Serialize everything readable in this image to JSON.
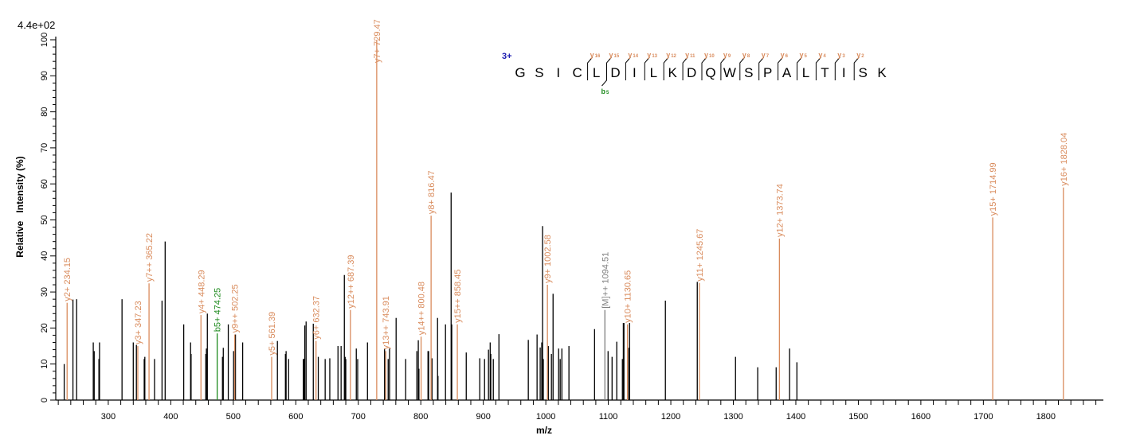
{
  "chart_data": {
    "type": "bar",
    "subtype": "mass-spectrum",
    "scale_label": "4.4e+02",
    "xlabel": "m/z",
    "ylabel": "Relative   Intensity (%)",
    "xlim": [
      216,
      1892
    ],
    "ylim": [
      0,
      100
    ],
    "x_ticks": [
      300,
      400,
      500,
      600,
      700,
      800,
      900,
      1000,
      1100,
      1200,
      1300,
      1400,
      1500,
      1600,
      1700,
      1800
    ],
    "y_ticks": [
      0,
      10,
      20,
      30,
      40,
      50,
      60,
      70,
      80,
      90,
      100
    ],
    "grid": false,
    "colors": {
      "y_ion": "#D98B5C",
      "b_ion": "#1E8A1E",
      "precursor": "#7F7F7F",
      "unassigned": "#000000",
      "charge": "#1A1AB0"
    },
    "annotated_peaks": [
      {
        "label": "y2+",
        "mz": 234.15,
        "intensity": 27,
        "ion": "y_ion"
      },
      {
        "label": "y3+",
        "mz": 347.23,
        "intensity": 15,
        "ion": "y_ion"
      },
      {
        "label": "y7++",
        "mz": 365.22,
        "intensity": 32.4,
        "ion": "y_ion"
      },
      {
        "label": "y4+",
        "mz": 448.29,
        "intensity": 23.6,
        "ion": "y_ion"
      },
      {
        "label": "b5+",
        "mz": 474.25,
        "intensity": 18.5,
        "ion": "b_ion"
      },
      {
        "label": "y9++",
        "mz": 502.25,
        "intensity": 18.2,
        "ion": "y_ion"
      },
      {
        "label": "y5+",
        "mz": 561.39,
        "intensity": 12,
        "ion": "y_ion"
      },
      {
        "label": "y6+",
        "mz": 632.37,
        "intensity": 16.4,
        "ion": "y_ion"
      },
      {
        "label": "y12++",
        "mz": 687.39,
        "intensity": 25,
        "ion": "y_ion"
      },
      {
        "label": "y7+",
        "mz": 729.47,
        "intensity": 100,
        "ion": "y_ion"
      },
      {
        "label": "y13++",
        "mz": 743.91,
        "intensity": 13.6,
        "ion": "y_ion"
      },
      {
        "label": "y14++",
        "mz": 800.48,
        "intensity": 17.6,
        "ion": "y_ion"
      },
      {
        "label": "y8+",
        "mz": 816.47,
        "intensity": 51.2,
        "ion": "y_ion"
      },
      {
        "label": "y15++",
        "mz": 858.45,
        "intensity": 21,
        "ion": "y_ion"
      },
      {
        "label": "y9+",
        "mz": 1002.58,
        "intensity": 32,
        "ion": "y_ion"
      },
      {
        "label": "[M]++",
        "mz": 1094.51,
        "intensity": 25,
        "ion": "precursor"
      },
      {
        "label": "y10+",
        "mz": 1130.65,
        "intensity": 21,
        "ion": "y_ion"
      },
      {
        "label": "y11+",
        "mz": 1245.67,
        "intensity": 32.5,
        "ion": "y_ion"
      },
      {
        "label": "y12+",
        "mz": 1373.74,
        "intensity": 44.8,
        "ion": "y_ion"
      },
      {
        "label": "y15+",
        "mz": 1714.99,
        "intensity": 50.7,
        "ion": "y_ion"
      },
      {
        "label": "y16+",
        "mz": 1828.04,
        "intensity": 59,
        "ion": "y_ion"
      }
    ],
    "unassigned_peaks": [
      [
        229.5,
        10
      ],
      [
        243.5,
        27.9
      ],
      [
        249.4,
        28
      ],
      [
        276,
        16
      ],
      [
        277.5,
        13.6
      ],
      [
        285,
        11.4
      ],
      [
        286,
        16
      ],
      [
        322,
        28
      ],
      [
        340,
        16
      ],
      [
        345,
        15.3
      ],
      [
        357.5,
        11.4
      ],
      [
        358.5,
        12
      ],
      [
        374,
        11.4
      ],
      [
        386,
        27.6
      ],
      [
        391,
        44
      ],
      [
        420.7,
        21
      ],
      [
        431.7,
        16
      ],
      [
        432.5,
        12.8
      ],
      [
        456,
        12.8
      ],
      [
        457,
        14.3
      ],
      [
        458.5,
        24
      ],
      [
        482.7,
        12
      ],
      [
        484,
        14.5
      ],
      [
        492,
        21
      ],
      [
        500.5,
        13.6
      ],
      [
        503.5,
        18.2
      ],
      [
        515,
        16
      ],
      [
        570.6,
        16.4
      ],
      [
        583.4,
        12.8
      ],
      [
        584.5,
        13.6
      ],
      [
        588.5,
        11.4
      ],
      [
        612,
        11.4
      ],
      [
        613,
        11.4
      ],
      [
        614.4,
        20.7
      ],
      [
        616.5,
        21.8
      ],
      [
        628,
        21.2
      ],
      [
        636,
        12
      ],
      [
        647,
        11.4
      ],
      [
        654.4,
        11.6
      ],
      [
        667.5,
        15
      ],
      [
        672.5,
        15
      ],
      [
        677.7,
        34.7
      ],
      [
        679,
        12
      ],
      [
        680,
        11.4
      ],
      [
        696.8,
        14.3
      ],
      [
        699,
        11.4
      ],
      [
        714.7,
        16
      ],
      [
        742,
        14.3
      ],
      [
        747.8,
        11.4
      ],
      [
        750,
        14.3
      ],
      [
        760.5,
        22.8
      ],
      [
        775.8,
        11.4
      ],
      [
        793.7,
        13.6
      ],
      [
        796,
        16.6
      ],
      [
        797,
        8.7
      ],
      [
        811.5,
        13.6
      ],
      [
        812.5,
        13.6
      ],
      [
        817.9,
        11.6
      ],
      [
        826.8,
        22.8
      ],
      [
        827.5,
        6.7
      ],
      [
        839.5,
        21
      ],
      [
        848.5,
        57.6
      ],
      [
        849.5,
        21
      ],
      [
        872.7,
        13.2
      ],
      [
        894.3,
        11.6
      ],
      [
        902,
        11.4
      ],
      [
        908.3,
        14
      ],
      [
        911,
        16
      ],
      [
        912,
        12.8
      ],
      [
        916,
        11.4
      ],
      [
        925,
        18.3
      ],
      [
        972,
        16.7
      ],
      [
        986,
        18.2
      ],
      [
        991,
        14.6
      ],
      [
        993.5,
        16
      ],
      [
        994.8,
        48.3
      ],
      [
        996,
        11.4
      ],
      [
        1004,
        15
      ],
      [
        1009,
        12.8
      ],
      [
        1011.6,
        29.5
      ],
      [
        1020.5,
        14.3
      ],
      [
        1023,
        11.4
      ],
      [
        1025.7,
        14.3
      ],
      [
        1037,
        15
      ],
      [
        1078,
        19.7
      ],
      [
        1099.6,
        13.6
      ],
      [
        1106,
        12
      ],
      [
        1113.5,
        16.2
      ],
      [
        1122.5,
        11.4
      ],
      [
        1124,
        21.4
      ],
      [
        1125,
        21.4
      ],
      [
        1132.8,
        14.5
      ],
      [
        1134,
        21.4
      ],
      [
        1191.3,
        27.6
      ],
      [
        1242.3,
        32.8
      ],
      [
        1303.5,
        12
      ],
      [
        1339,
        9.1
      ],
      [
        1368.5,
        9.1
      ],
      [
        1390,
        14.3
      ],
      [
        1401.7,
        10.5
      ]
    ]
  },
  "sequence": {
    "charge": "3+",
    "residues": [
      "G",
      "S",
      "I",
      "C",
      "L",
      "D",
      "I",
      "L",
      "K",
      "D",
      "Q",
      "W",
      "S",
      "P",
      "A",
      "L",
      "T",
      "I",
      "S",
      "K"
    ],
    "y_ions": [
      {
        "n": "16",
        "at": 4
      },
      {
        "n": "15",
        "at": 5
      },
      {
        "n": "14",
        "at": 6
      },
      {
        "n": "13",
        "at": 7
      },
      {
        "n": "12",
        "at": 8
      },
      {
        "n": "11",
        "at": 9
      },
      {
        "n": "10",
        "at": 10
      },
      {
        "n": "9",
        "at": 11
      },
      {
        "n": "8",
        "at": 12
      },
      {
        "n": "7",
        "at": 13
      },
      {
        "n": "6",
        "at": 14
      },
      {
        "n": "5",
        "at": 15
      },
      {
        "n": "4",
        "at": 16
      },
      {
        "n": "3",
        "at": 17
      },
      {
        "n": "2",
        "at": 18
      }
    ],
    "b_ions": [
      {
        "n": "5",
        "at": 5
      }
    ]
  }
}
